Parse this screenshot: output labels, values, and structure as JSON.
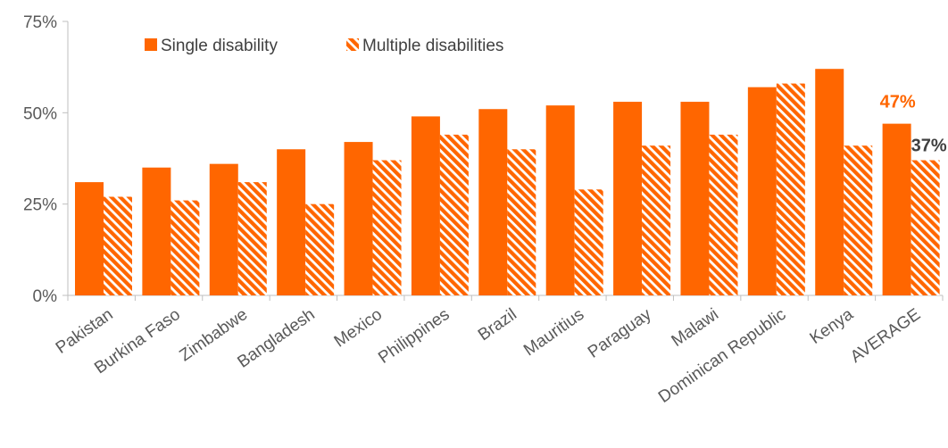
{
  "colors": {
    "single": "#ff6600",
    "multiple": "#ff6600",
    "axis": "#bfbfbf",
    "text": "#595959",
    "average_single_label": "#ff6600",
    "average_multiple_label": "#404040"
  },
  "chart_data": {
    "type": "bar",
    "title": "",
    "xlabel": "",
    "ylabel": "",
    "ylim": [
      0,
      75
    ],
    "yticks": [
      "0%",
      "25%",
      "50%",
      "75%"
    ],
    "ytick_values": [
      0,
      25,
      50,
      75
    ],
    "grid": false,
    "legend_position": "top-left",
    "categories": [
      "Pakistan",
      "Burkina Faso",
      "Zimbabwe",
      "Bangladesh",
      "Mexico",
      "Philippines",
      "Brazil",
      "Mauritius",
      "Paraguay",
      "Malawi",
      "Dominican Republic",
      "Kenya",
      "AVERAGE"
    ],
    "series": [
      {
        "name": "Single disability",
        "pattern": "solid",
        "values": [
          31,
          35,
          36,
          40,
          42,
          49,
          51,
          52,
          53,
          53,
          57,
          62,
          47
        ]
      },
      {
        "name": "Multiple disabilities",
        "pattern": "hatched",
        "values": [
          27,
          26,
          31,
          25,
          37,
          44,
          40,
          29,
          41,
          44,
          58,
          41,
          37
        ]
      }
    ],
    "annotations": [
      {
        "text": "47%",
        "category": "AVERAGE",
        "series": "Single disability"
      },
      {
        "text": "37%",
        "category": "AVERAGE",
        "series": "Multiple disabilities"
      }
    ]
  }
}
